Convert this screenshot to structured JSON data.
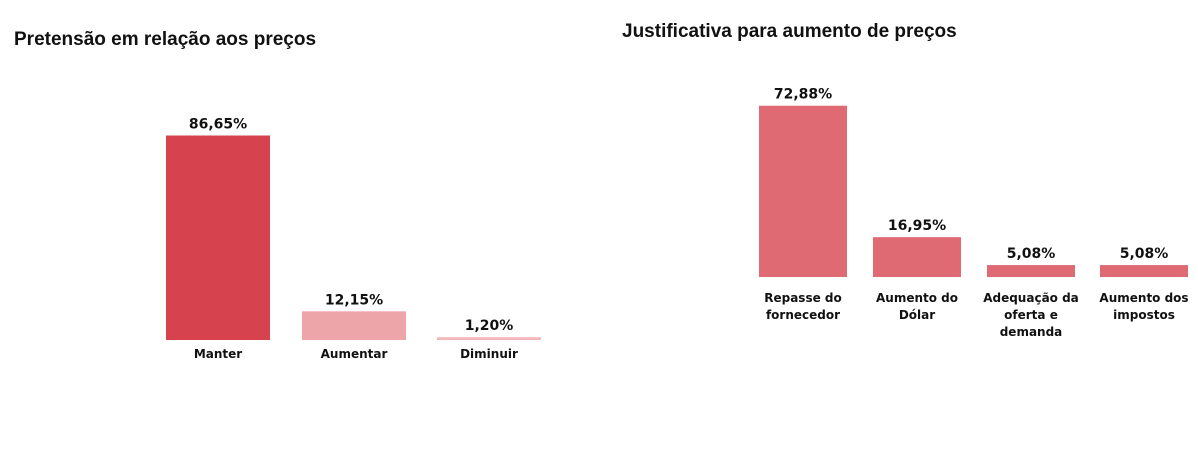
{
  "chart_data": [
    {
      "type": "bar",
      "title": "Pretensão em relação aos preços",
      "xlabel": "",
      "ylabel": "",
      "ylim": [
        0,
        100
      ],
      "grid": false,
      "categories": [
        [
          "Manter"
        ],
        [
          "Aumentar"
        ],
        [
          "Diminuir"
        ]
      ],
      "values": [
        86.65,
        12.15,
        1.2
      ],
      "value_labels": [
        "86,65%",
        "12,15%",
        "1,20%"
      ],
      "colors": [
        "#d6434f",
        "#eea5aa",
        "#f2b8bc"
      ]
    },
    {
      "type": "bar",
      "title": "Justificativa para aumento de preços",
      "xlabel": "",
      "ylabel": "",
      "ylim": [
        0,
        100
      ],
      "grid": false,
      "categories": [
        [
          "Repasse do",
          "fornecedor"
        ],
        [
          "Aumento do",
          "Dólar"
        ],
        [
          "Adequação da",
          "oferta e",
          "demanda"
        ],
        [
          "Aumento dos",
          "impostos"
        ]
      ],
      "values": [
        72.88,
        16.95,
        5.08,
        5.08
      ],
      "value_labels": [
        "72,88%",
        "16,95%",
        "5,08%",
        "5,08%"
      ],
      "colors": [
        "#df6a73",
        "#df6a73",
        "#df6a73",
        "#df6a73"
      ]
    }
  ]
}
